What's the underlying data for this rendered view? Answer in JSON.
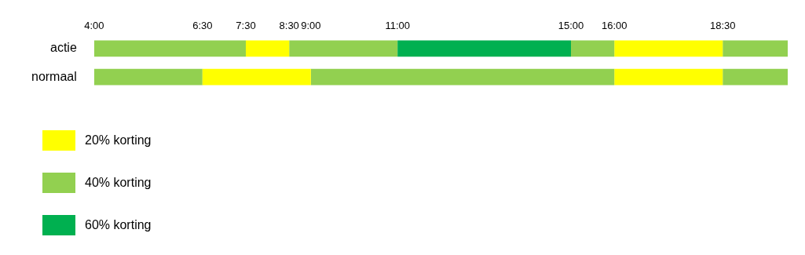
{
  "chart_data": {
    "type": "bar",
    "orientation": "horizontal",
    "categories": [
      "actie",
      "normaal"
    ],
    "series": [
      {
        "name": "20% korting",
        "color": "#ffff00",
        "base": [
          7.5,
          6.5
        ],
        "values": [
          1,
          2.5
        ]
      },
      {
        "name": "40% korting",
        "color": "#92d050",
        "base": [
          4,
          4
        ],
        "values": [
          3.5,
          2.5
        ]
      },
      {
        "name": "60% korting",
        "color": "#00b050",
        "base": [
          11,
          null
        ],
        "values": [
          4,
          null
        ]
      },
      {
        "color": "#92d050",
        "base": [
          8.5,
          9
        ],
        "values": [
          2.5,
          7
        ]
      },
      {
        "color": "#92d050",
        "base": [
          15,
          null
        ],
        "values": [
          1,
          null
        ]
      },
      {
        "color": "#ffff00",
        "base": [
          16,
          16
        ],
        "values": [
          2.5,
          2.5
        ]
      },
      {
        "color": "#92d050",
        "base": [
          18.5,
          18.5
        ],
        "values": [
          1.5,
          1.5
        ]
      }
    ],
    "xlim": [
      4,
      20
    ],
    "xticks": [
      {
        "value": 4,
        "label": "4:00"
      },
      {
        "value": 6.5,
        "label": "6:30"
      },
      {
        "value": 7.5,
        "label": "7:30"
      },
      {
        "value": 8.5,
        "label": "8:30"
      },
      {
        "value": 9,
        "label": "9:00"
      },
      {
        "value": 11,
        "label": "11:00"
      },
      {
        "value": 15,
        "label": "15:00"
      },
      {
        "value": 16,
        "label": "16:00"
      },
      {
        "value": 18.5,
        "label": "18:30"
      }
    ],
    "grid": false,
    "legend": "bottom left"
  }
}
